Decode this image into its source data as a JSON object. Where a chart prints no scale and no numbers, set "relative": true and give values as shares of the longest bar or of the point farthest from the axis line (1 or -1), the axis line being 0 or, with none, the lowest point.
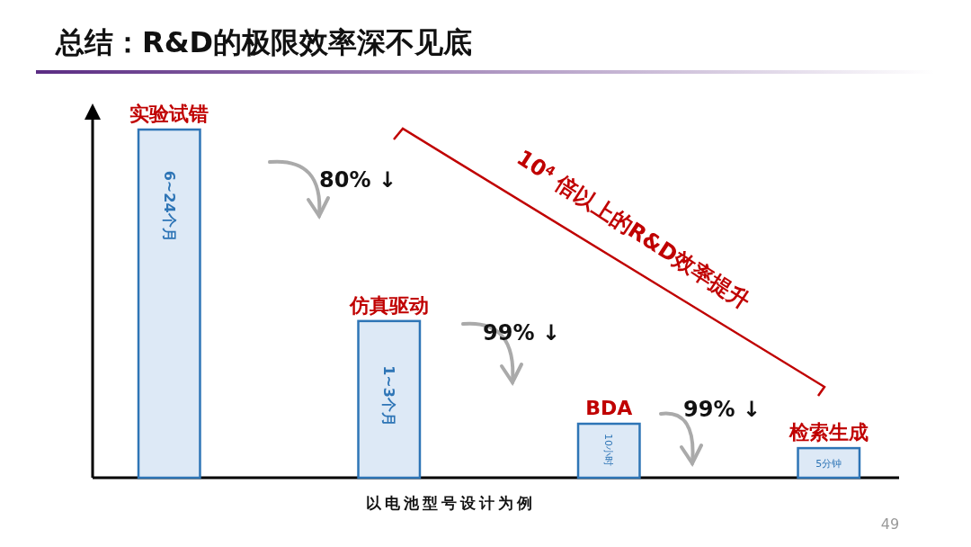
{
  "chart_data": {
    "type": "bar",
    "title": "总结：R&D的极限效率深不见底",
    "xlabel": "以电池型号设计为例",
    "relative": true,
    "categories": [
      "实验试错",
      "仿真驱动",
      "BDA",
      "检索生成"
    ],
    "values": [
      1,
      0.45,
      0.155,
      0.085
    ],
    "color": "#dde9f6",
    "annotations": [
      "80% ↓",
      "99% ↓",
      "99% ↓",
      "10$^{4}$ 倍以上的R&D效率提升",
      "49",
      "6~24个月",
      "1~3个月",
      "10小时",
      "5分钟"
    ]
  }
}
